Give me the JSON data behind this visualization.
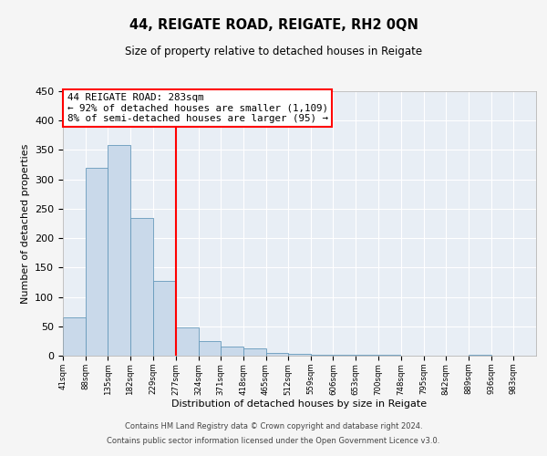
{
  "title": "44, REIGATE ROAD, REIGATE, RH2 0QN",
  "subtitle": "Size of property relative to detached houses in Reigate",
  "xlabel": "Distribution of detached houses by size in Reigate",
  "ylabel": "Number of detached properties",
  "bar_color": "#c9d9ea",
  "bar_edge_color": "#6699bb",
  "bg_color": "#e8eef5",
  "grid_color": "#ffffff",
  "fig_bg_color": "#f5f5f5",
  "vline_x": 277,
  "vline_color": "red",
  "annotation_title": "44 REIGATE ROAD: 283sqm",
  "annotation_line1": "← 92% of detached houses are smaller (1,109)",
  "annotation_line2": "8% of semi-detached houses are larger (95) →",
  "bin_edges": [
    41,
    88,
    135,
    182,
    229,
    277,
    324,
    371,
    418,
    465,
    512,
    559,
    606,
    653,
    700,
    748,
    795,
    842,
    889,
    936,
    983,
    1030
  ],
  "bin_labels": [
    "41sqm",
    "88sqm",
    "135sqm",
    "182sqm",
    "229sqm",
    "277sqm",
    "324sqm",
    "371sqm",
    "418sqm",
    "465sqm",
    "512sqm",
    "559sqm",
    "606sqm",
    "653sqm",
    "700sqm",
    "748sqm",
    "795sqm",
    "842sqm",
    "889sqm",
    "936sqm",
    "983sqm"
  ],
  "counts": [
    65,
    320,
    358,
    235,
    127,
    48,
    25,
    16,
    12,
    5,
    3,
    2,
    2,
    1,
    1,
    0,
    0,
    0,
    2,
    0,
    0
  ],
  "ylim": [
    0,
    450
  ],
  "yticks": [
    0,
    50,
    100,
    150,
    200,
    250,
    300,
    350,
    400,
    450
  ],
  "footnote1": "Contains HM Land Registry data © Crown copyright and database right 2024.",
  "footnote2": "Contains public sector information licensed under the Open Government Licence v3.0."
}
